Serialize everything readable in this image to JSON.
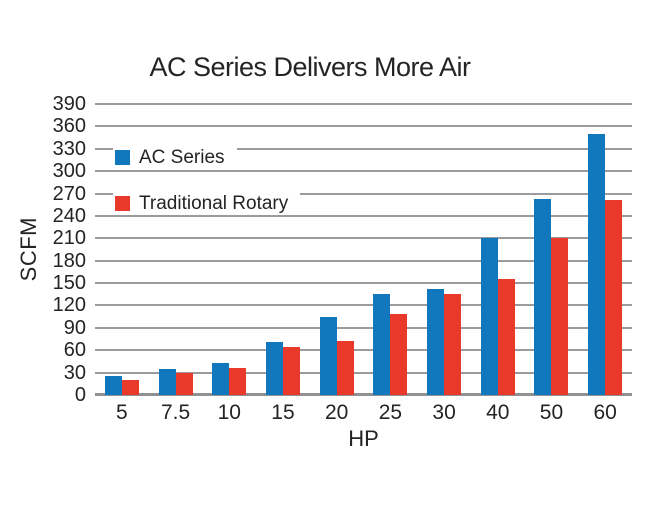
{
  "chart_data": {
    "type": "bar",
    "title": "AC Series Delivers More Air",
    "xlabel": "HP",
    "ylabel": "SCFM",
    "categories": [
      "5",
      "7.5",
      "10",
      "15",
      "20",
      "25",
      "30",
      "40",
      "50",
      "60"
    ],
    "series": [
      {
        "name": "AC Series",
        "color": "#1278bd",
        "values": [
          25,
          35,
          43,
          71,
          104,
          135,
          142,
          210,
          263,
          350
        ]
      },
      {
        "name": "Traditional Rotary",
        "color": "#e8392b",
        "values": [
          20,
          29,
          36,
          65,
          73,
          109,
          136,
          155,
          211,
          261
        ]
      }
    ],
    "ylim": [
      0,
      390
    ],
    "ytick_step": 30,
    "grid": true,
    "legend_position": "inside-top-left",
    "gridline_color": "#9b9b9d",
    "baseline_color": "#8f9193",
    "text_color": "#262324",
    "background_color": "#ffffff"
  }
}
